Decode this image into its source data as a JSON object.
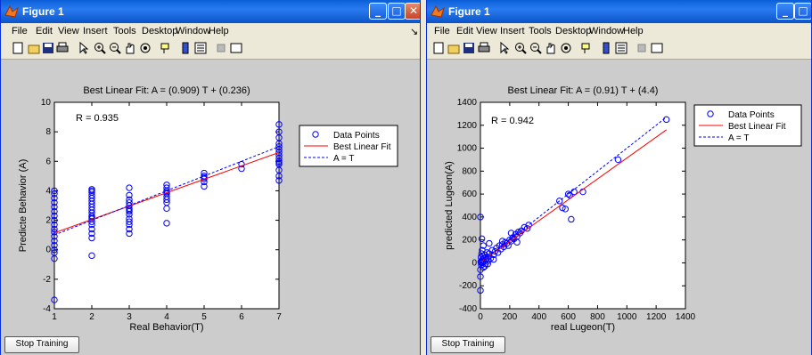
{
  "windows": [
    {
      "title": "Figure 1",
      "menus": [
        "File",
        "Edit",
        "View",
        "Insert",
        "Tools",
        "Desktop",
        "Window",
        "Help"
      ],
      "stop_button": "Stop Training",
      "chart": {
        "title": "Best Linear Fit:  A = (0.909) T + (0.236)",
        "xlabel": "Real Behavior(T)",
        "ylabel": "Predicte Behavior (A)",
        "r_label": "R = 0.935",
        "legend": [
          "Data Points",
          "Best Linear Fit",
          "A = T"
        ],
        "xticks": [
          "1",
          "2",
          "3",
          "4",
          "5",
          "6",
          "7"
        ],
        "yticks": [
          "-4",
          "-2",
          "0",
          "2",
          "4",
          "6",
          "8",
          "10"
        ]
      }
    },
    {
      "title": "Figure 1",
      "menus": [
        "File",
        "Edit",
        "View",
        "Insert",
        "Tools",
        "Desktop",
        "Window",
        "Help"
      ],
      "stop_button": "Stop Training",
      "chart": {
        "title": "Best Linear Fit:  A = (0.91) T + (4.4)",
        "xlabel": "real Lugeon(T)",
        "ylabel": "predicted Lugeon(A)",
        "r_label": "R = 0.942",
        "legend": [
          "Data Points",
          "Best Linear Fit",
          "A = T"
        ],
        "xticks": [
          "0",
          "200",
          "400",
          "600",
          "800",
          "1000",
          "1200",
          "1400"
        ],
        "yticks": [
          "-400",
          "-200",
          "0",
          "200",
          "400",
          "600",
          "800",
          "1000",
          "1200",
          "1400"
        ]
      }
    }
  ],
  "chart_data": [
    {
      "type": "scatter",
      "title": "Best Linear Fit:  A = (0.909) T + (0.236)",
      "xlabel": "Real Behavior(T)",
      "ylabel": "Predicte Behavior (A)",
      "xlim": [
        1,
        7
      ],
      "ylim": [
        -4,
        10
      ],
      "series": [
        {
          "name": "Data Points",
          "x": [
            1,
            1,
            1,
            1,
            1,
            1,
            1,
            1,
            1,
            1,
            1,
            1,
            1,
            1,
            1,
            1,
            1,
            1,
            2,
            2,
            2,
            2,
            2,
            2,
            2,
            2,
            2,
            2,
            2,
            2,
            2,
            2,
            2,
            2,
            2,
            2,
            2,
            3,
            3,
            3,
            3,
            3,
            3,
            3,
            3,
            3,
            3,
            3,
            3,
            3,
            3,
            4,
            4,
            4,
            4,
            4,
            4,
            4,
            4,
            4,
            4,
            5,
            5,
            5,
            5,
            5,
            5,
            6,
            6,
            7,
            7,
            7,
            7,
            7,
            7,
            7,
            7,
            7,
            7,
            7,
            7,
            7,
            7,
            7
          ],
          "y": [
            -3.4,
            -0.6,
            0,
            0.3,
            0.6,
            0.9,
            1.2,
            1.4,
            1.7,
            2.0,
            2.3,
            2.6,
            2.9,
            3.2,
            3.5,
            3.8,
            4.0,
            -0.2,
            -0.4,
            0.8,
            1.1,
            1.4,
            1.7,
            1.9,
            2.1,
            2.3,
            2.5,
            2.7,
            2.9,
            3.1,
            3.3,
            3.5,
            3.7,
            3.9,
            4.0,
            4.1,
            2.2,
            1.1,
            1.4,
            1.7,
            1.9,
            2.1,
            2.4,
            2.6,
            2.8,
            3.0,
            3.2,
            3.4,
            3.7,
            4.2,
            2.7,
            1.8,
            2.8,
            3.2,
            3.4,
            3.6,
            3.8,
            3.9,
            4.0,
            4.2,
            4.4,
            4.3,
            4.6,
            4.8,
            5.0,
            5.2,
            4.9,
            5.5,
            5.8,
            4.7,
            5.0,
            5.4,
            5.8,
            6.0,
            6.2,
            6.4,
            6.6,
            6.8,
            7.0,
            7.2,
            7.6,
            8.0,
            8.5,
            5.9
          ]
        },
        {
          "name": "Best Linear Fit",
          "x": [
            1,
            7
          ],
          "y": [
            1.145,
            6.599
          ]
        },
        {
          "name": "A = T",
          "x": [
            1,
            7
          ],
          "y": [
            1,
            7
          ]
        }
      ],
      "annotations": [
        "R = 0.935"
      ],
      "legend": "top-right"
    },
    {
      "type": "scatter",
      "title": "Best Linear Fit:  A = (0.91) T + (4.4)",
      "xlabel": "real Lugeon(T)",
      "ylabel": "predicted Lugeon(A)",
      "xlim": [
        0,
        1400
      ],
      "ylim": [
        -400,
        1400
      ],
      "series": [
        {
          "name": "Data Points",
          "x": [
            0,
            0,
            0,
            0,
            2,
            4,
            6,
            8,
            10,
            12,
            15,
            18,
            20,
            25,
            30,
            35,
            40,
            45,
            50,
            55,
            60,
            70,
            80,
            90,
            100,
            110,
            120,
            130,
            140,
            150,
            160,
            170,
            180,
            190,
            200,
            210,
            220,
            230,
            240,
            250,
            260,
            270,
            280,
            300,
            320,
            330,
            540,
            560,
            580,
            600,
            610,
            620,
            640,
            700,
            940,
            1270,
            60,
            90,
            50,
            30,
            20,
            10,
            5,
            150,
            210,
            250
          ],
          "y": [
            -240,
            -120,
            400,
            -60,
            10,
            50,
            -20,
            80,
            20,
            110,
            0,
            60,
            -40,
            40,
            70,
            -10,
            30,
            90,
            50,
            20,
            80,
            40,
            110,
            70,
            100,
            130,
            90,
            150,
            120,
            160,
            140,
            180,
            170,
            150,
            200,
            190,
            220,
            210,
            250,
            230,
            270,
            260,
            280,
            310,
            300,
            330,
            540,
            480,
            470,
            600,
            590,
            380,
            620,
            620,
            900,
            1250,
            170,
            30,
            -10,
            -30,
            150,
            210,
            0,
            190,
            260,
            180
          ]
        },
        {
          "name": "Best Linear Fit",
          "x": [
            0,
            1270
          ],
          "y": [
            4.4,
            1160.1
          ]
        },
        {
          "name": "A = T",
          "x": [
            0,
            1270
          ],
          "y": [
            0,
            1270
          ]
        }
      ],
      "annotations": [
        "R = 0.942"
      ],
      "legend": "top-right"
    }
  ]
}
